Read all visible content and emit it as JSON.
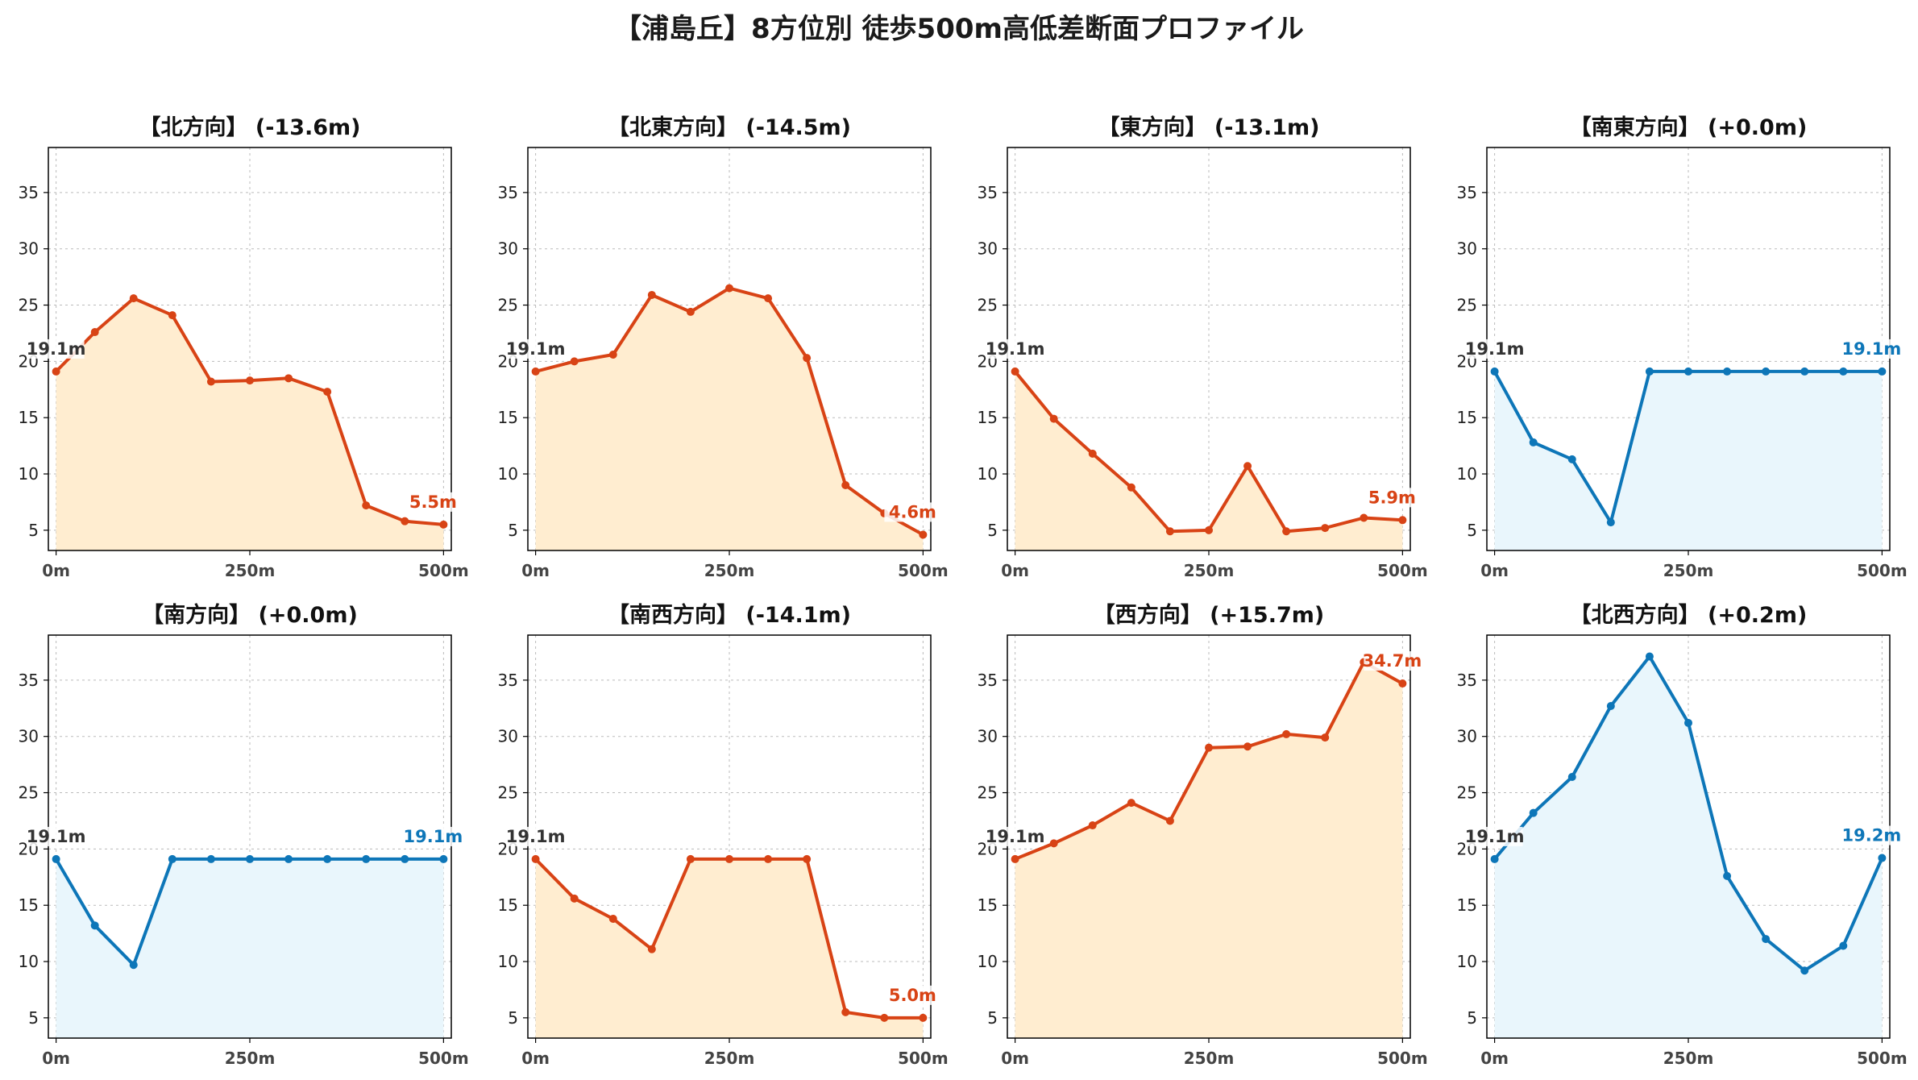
{
  "page": {
    "title": "【浦島丘】8方位別 徒歩500m高低差断面プロファイル"
  },
  "colors": {
    "down_line": "#d84315",
    "down_fill": "#ffedd0",
    "up_line": "#0d76b8",
    "up_fill": "#e9f6fc",
    "start_label": "#333333",
    "grid": "#bbbbbb"
  },
  "chart_data": [
    {
      "type": "area",
      "title": "【北方向】 (-13.6m)",
      "theme": "down",
      "x": [
        0,
        50,
        100,
        150,
        200,
        250,
        300,
        350,
        400,
        450,
        500
      ],
      "values": [
        19.1,
        22.6,
        25.6,
        24.1,
        18.2,
        18.3,
        18.5,
        17.3,
        7.2,
        5.8,
        5.5
      ],
      "start_label": "19.1m",
      "end_label": "5.5m",
      "xticks": [
        "0m",
        "250m",
        "500m"
      ],
      "yticks": [
        5,
        10,
        15,
        20,
        25,
        30,
        35
      ],
      "ylim": [
        3.2,
        39
      ],
      "xlim": [
        -10,
        510
      ],
      "grid": true
    },
    {
      "type": "area",
      "title": "【北東方向】 (-14.5m)",
      "theme": "down",
      "x": [
        0,
        50,
        100,
        150,
        200,
        250,
        300,
        350,
        400,
        450,
        500
      ],
      "values": [
        19.1,
        20.0,
        20.6,
        25.9,
        24.4,
        26.5,
        25.6,
        20.3,
        9.0,
        6.5,
        4.6
      ],
      "start_label": "19.1m",
      "end_label": "4.6m",
      "xticks": [
        "0m",
        "250m",
        "500m"
      ],
      "yticks": [
        5,
        10,
        15,
        20,
        25,
        30,
        35
      ],
      "ylim": [
        3.2,
        39
      ],
      "xlim": [
        -10,
        510
      ],
      "grid": true
    },
    {
      "type": "area",
      "title": "【東方向】 (-13.1m)",
      "theme": "down",
      "x": [
        0,
        50,
        100,
        150,
        200,
        250,
        300,
        350,
        400,
        450,
        500
      ],
      "values": [
        19.1,
        14.9,
        11.8,
        8.8,
        4.9,
        5.0,
        10.7,
        4.9,
        5.2,
        6.1,
        5.9
      ],
      "start_label": "19.1m",
      "end_label": "5.9m",
      "xticks": [
        "0m",
        "250m",
        "500m"
      ],
      "yticks": [
        5,
        10,
        15,
        20,
        25,
        30,
        35
      ],
      "ylim": [
        3.2,
        39
      ],
      "xlim": [
        -10,
        510
      ],
      "grid": true
    },
    {
      "type": "area",
      "title": "【南東方向】 (+0.0m)",
      "theme": "up",
      "x": [
        0,
        50,
        100,
        150,
        200,
        250,
        300,
        350,
        400,
        450,
        500
      ],
      "values": [
        19.1,
        12.8,
        11.3,
        5.7,
        19.1,
        19.1,
        19.1,
        19.1,
        19.1,
        19.1,
        19.1
      ],
      "start_label": "19.1m",
      "end_label": "19.1m",
      "xticks": [
        "0m",
        "250m",
        "500m"
      ],
      "yticks": [
        5,
        10,
        15,
        20,
        25,
        30,
        35
      ],
      "ylim": [
        3.2,
        39
      ],
      "xlim": [
        -10,
        510
      ],
      "grid": true
    },
    {
      "type": "area",
      "title": "【南方向】 (+0.0m)",
      "theme": "up",
      "x": [
        0,
        50,
        100,
        150,
        200,
        250,
        300,
        350,
        400,
        450,
        500
      ],
      "values": [
        19.1,
        13.2,
        9.7,
        19.1,
        19.1,
        19.1,
        19.1,
        19.1,
        19.1,
        19.1,
        19.1
      ],
      "start_label": "19.1m",
      "end_label": "19.1m",
      "xticks": [
        "0m",
        "250m",
        "500m"
      ],
      "yticks": [
        5,
        10,
        15,
        20,
        25,
        30,
        35
      ],
      "ylim": [
        3.2,
        39
      ],
      "xlim": [
        -10,
        510
      ],
      "grid": true
    },
    {
      "type": "area",
      "title": "【南西方向】 (-14.1m)",
      "theme": "down",
      "x": [
        0,
        50,
        100,
        150,
        200,
        250,
        300,
        350,
        400,
        450,
        500
      ],
      "values": [
        19.1,
        15.6,
        13.8,
        11.1,
        19.1,
        19.1,
        19.1,
        19.1,
        5.5,
        5.0,
        5.0
      ],
      "start_label": "19.1m",
      "end_label": "5.0m",
      "xticks": [
        "0m",
        "250m",
        "500m"
      ],
      "yticks": [
        5,
        10,
        15,
        20,
        25,
        30,
        35
      ],
      "ylim": [
        3.2,
        39
      ],
      "xlim": [
        -10,
        510
      ],
      "grid": true
    },
    {
      "type": "area",
      "title": "【西方向】 (+15.7m)",
      "theme": "down",
      "x": [
        0,
        50,
        100,
        150,
        200,
        250,
        300,
        350,
        400,
        450,
        500
      ],
      "values": [
        19.1,
        20.5,
        22.1,
        24.1,
        22.5,
        29.0,
        29.1,
        30.2,
        29.9,
        36.6,
        34.7
      ],
      "start_label": "19.1m",
      "end_label": "34.7m",
      "xticks": [
        "0m",
        "250m",
        "500m"
      ],
      "yticks": [
        5,
        10,
        15,
        20,
        25,
        30,
        35
      ],
      "ylim": [
        3.2,
        39
      ],
      "xlim": [
        -10,
        510
      ],
      "grid": true
    },
    {
      "type": "area",
      "title": "【北西方向】 (+0.2m)",
      "theme": "up",
      "x": [
        0,
        50,
        100,
        150,
        200,
        250,
        300,
        350,
        400,
        450,
        500
      ],
      "values": [
        19.1,
        23.2,
        26.4,
        32.7,
        37.1,
        31.2,
        17.6,
        12.0,
        9.2,
        11.4,
        19.2
      ],
      "start_label": "19.1m",
      "end_label": "19.2m",
      "xticks": [
        "0m",
        "250m",
        "500m"
      ],
      "yticks": [
        5,
        10,
        15,
        20,
        25,
        30,
        35
      ],
      "ylim": [
        3.2,
        39
      ],
      "xlim": [
        -10,
        510
      ],
      "grid": true
    }
  ]
}
